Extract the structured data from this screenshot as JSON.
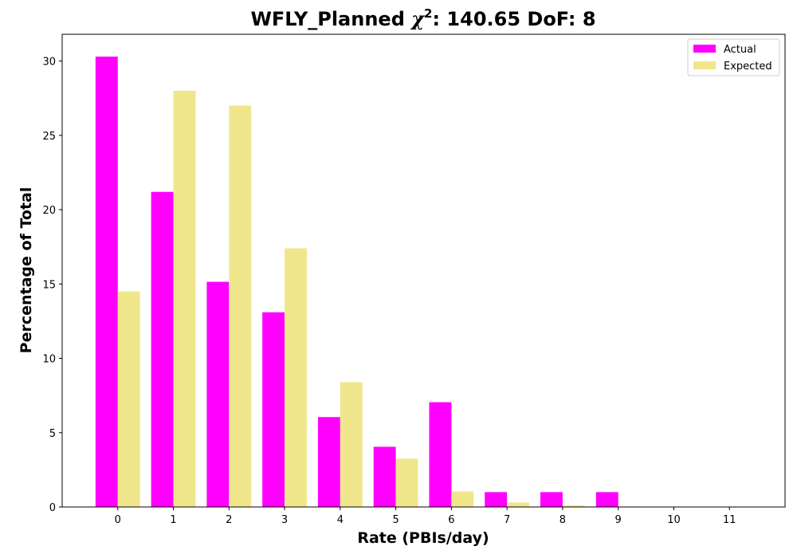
{
  "chart_data": {
    "type": "bar",
    "title_main": "WFLY_Planned ",
    "title_chi": "χ",
    "title_sup": "2",
    "title_rest": ": 140.65 DoF: 8",
    "xlabel": "Rate (PBIs/day)",
    "ylabel": "Percentage of Total",
    "categories": [
      "0",
      "1",
      "2",
      "3",
      "4",
      "5",
      "6",
      "7",
      "8",
      "9",
      "10",
      "11"
    ],
    "series": [
      {
        "name": "Actual",
        "color": "#ff00ff",
        "values": [
          30.3,
          21.2,
          15.15,
          13.1,
          6.05,
          4.05,
          7.05,
          1.0,
          1.0,
          1.0,
          0,
          0
        ]
      },
      {
        "name": "Expected",
        "color": "#f0e68c",
        "values": [
          14.5,
          28.0,
          27.0,
          17.4,
          8.4,
          3.25,
          1.05,
          0.3,
          0.1,
          0.03,
          0,
          0
        ]
      }
    ],
    "yticks": [
      "0",
      "5",
      "10",
      "15",
      "20",
      "25",
      "30"
    ],
    "ylim": [
      0,
      31.8
    ],
    "xlim": [
      -1,
      12
    ],
    "grid": false,
    "legend_position": "top-right"
  }
}
